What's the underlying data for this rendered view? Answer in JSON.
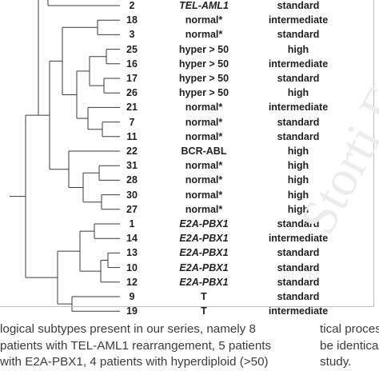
{
  "rows": [
    {
      "id": "2",
      "subtype": "TEL-AML1",
      "subtype_italic": true,
      "risk": "standard"
    },
    {
      "id": "18",
      "subtype": "normal*",
      "subtype_italic": false,
      "risk": "intermediate"
    },
    {
      "id": "3",
      "subtype": "normal*",
      "subtype_italic": false,
      "risk": "standard"
    },
    {
      "id": "25",
      "subtype": "hyper > 50",
      "subtype_italic": false,
      "risk": "high"
    },
    {
      "id": "16",
      "subtype": "hyper > 50",
      "subtype_italic": false,
      "risk": "intermediate"
    },
    {
      "id": "17",
      "subtype": "hyper > 50",
      "subtype_italic": false,
      "risk": "standard"
    },
    {
      "id": "26",
      "subtype": "hyper > 50",
      "subtype_italic": false,
      "risk": "high"
    },
    {
      "id": "21",
      "subtype": "normal*",
      "subtype_italic": false,
      "risk": "intermediate"
    },
    {
      "id": "7",
      "subtype": "normal*",
      "subtype_italic": false,
      "risk": "standard"
    },
    {
      "id": "11",
      "subtype": "normal*",
      "subtype_italic": false,
      "risk": "standard"
    },
    {
      "id": "22",
      "subtype": "BCR-ABL",
      "subtype_italic": false,
      "risk": "high"
    },
    {
      "id": "31",
      "subtype": "normal*",
      "subtype_italic": false,
      "risk": "high"
    },
    {
      "id": "28",
      "subtype": "normal*",
      "subtype_italic": false,
      "risk": "high"
    },
    {
      "id": "30",
      "subtype": "normal*",
      "subtype_italic": false,
      "risk": "high"
    },
    {
      "id": "27",
      "subtype": "normal*",
      "subtype_italic": false,
      "risk": "high"
    },
    {
      "id": "1",
      "subtype": "E2A-PBX1",
      "subtype_italic": true,
      "risk": "standard"
    },
    {
      "id": "14",
      "subtype": "E2A-PBX1",
      "subtype_italic": true,
      "risk": "intermediate"
    },
    {
      "id": "13",
      "subtype": "E2A-PBX1",
      "subtype_italic": true,
      "risk": "standard"
    },
    {
      "id": "10",
      "subtype": "E2A-PBX1",
      "subtype_italic": true,
      "risk": "standard"
    },
    {
      "id": "12",
      "subtype": "E2A-PBX1",
      "subtype_italic": true,
      "risk": "standard"
    },
    {
      "id": "9",
      "subtype": "T",
      "subtype_italic": false,
      "risk": "standard"
    },
    {
      "id": "19",
      "subtype": "T",
      "subtype_italic": false,
      "risk": "intermediate"
    }
  ],
  "body_text": {
    "left_lines": [
      "logical subtypes present in our series, namely 8",
      "patients with TEL-AML1 rearrangement, 5 patients",
      "with E2A-PBX1, 4 patients with hyperdiploid (>50)"
    ],
    "right_lines": [
      "tical proces",
      "be identica",
      "study."
    ]
  },
  "watermark_text": "Storti Fo",
  "colors": {
    "text": "#1f1f1f",
    "tree_line": "#3a3a3a",
    "body_text": "#3b3b3b",
    "watermark": "#ececec"
  }
}
